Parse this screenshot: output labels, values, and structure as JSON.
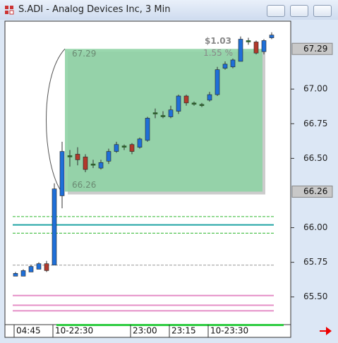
{
  "window": {
    "title": "S.ADI - Analog Devices Inc, 3 Min"
  },
  "chart_data": {
    "type": "candlestick",
    "categories": [
      "04:45",
      null,
      null,
      null,
      null,
      "10-22:30",
      null,
      null,
      null,
      null,
      null,
      null,
      null,
      null,
      null,
      "23:00",
      null,
      null,
      null,
      null,
      "23:15",
      null,
      null,
      null,
      null,
      "10-23:30",
      null,
      null,
      null,
      null,
      null,
      null,
      null,
      null
    ],
    "open": [
      65.65,
      65.65,
      65.68,
      65.7,
      65.74,
      65.73,
      66.23,
      66.51,
      66.53,
      66.51,
      66.46,
      66.43,
      66.48,
      66.55,
      66.58,
      66.6,
      66.58,
      66.63,
      66.83,
      66.8,
      66.8,
      66.84,
      66.95,
      66.89,
      66.89,
      66.92,
      66.96,
      67.15,
      67.16,
      67.2,
      67.34,
      67.34,
      67.27,
      67.37
    ],
    "high": [
      65.68,
      65.7,
      65.73,
      65.75,
      65.76,
      66.32,
      66.62,
      66.56,
      66.58,
      66.53,
      66.49,
      66.49,
      66.57,
      66.62,
      66.6,
      66.61,
      66.65,
      66.8,
      66.86,
      66.84,
      66.88,
      66.96,
      66.96,
      66.91,
      66.9,
      66.98,
      67.16,
      67.2,
      67.22,
      67.38,
      67.37,
      67.35,
      67.36,
      67.41
    ],
    "low": [
      65.65,
      65.65,
      65.68,
      65.7,
      65.68,
      65.73,
      66.14,
      66.44,
      66.45,
      66.4,
      66.43,
      66.42,
      66.46,
      66.54,
      66.56,
      66.53,
      66.57,
      66.62,
      66.79,
      66.79,
      66.79,
      66.82,
      66.88,
      66.88,
      66.87,
      66.91,
      66.95,
      67.14,
      67.15,
      67.2,
      67.32,
      67.25,
      67.25,
      67.36
    ],
    "close": [
      65.67,
      65.69,
      65.72,
      65.74,
      65.69,
      66.28,
      66.55,
      66.52,
      66.49,
      66.42,
      66.45,
      66.47,
      66.55,
      66.6,
      66.59,
      66.55,
      66.64,
      66.79,
      66.82,
      66.81,
      66.85,
      66.95,
      66.9,
      66.9,
      66.89,
      66.96,
      67.14,
      67.18,
      67.21,
      67.36,
      67.35,
      67.26,
      67.35,
      67.39
    ],
    "up_color": "#1f6fd8",
    "down_color": "#b23a2c",
    "doji_color": "#2f5f2f",
    "ylim": [
      65.3,
      67.49
    ],
    "yticks": [
      {
        "value": 65.5,
        "label": "65.50"
      },
      {
        "value": 65.75,
        "label": "65.75"
      },
      {
        "value": 66,
        "label": "66.00"
      },
      {
        "value": 66.5,
        "label": "66.50"
      },
      {
        "value": 66.75,
        "label": "66.75"
      },
      {
        "value": 67,
        "label": "67.00"
      }
    ],
    "levels": [
      {
        "value": 66.08,
        "color": "#2eb82e",
        "style": "dashed"
      },
      {
        "value": 66.02,
        "color": "#1fa3a3",
        "style": "solid"
      },
      {
        "value": 65.96,
        "color": "#2eb82e",
        "style": "dashed"
      },
      {
        "value": 65.73,
        "color": "#999999",
        "style": "dashed"
      },
      {
        "value": 65.51,
        "color": "#e58fc7",
        "style": "solid"
      },
      {
        "value": 65.44,
        "color": "#e58fc7",
        "style": "solid"
      },
      {
        "value": 65.4,
        "color": "#e58fc7",
        "style": "solid"
      }
    ],
    "measure": {
      "high": 67.29,
      "low": 66.26,
      "change": {
        "value": 1.03,
        "label": "$1.03"
      },
      "percent": {
        "value": 1.55,
        "label": "1.55 %"
      },
      "color": "#8fd3a5"
    }
  }
}
